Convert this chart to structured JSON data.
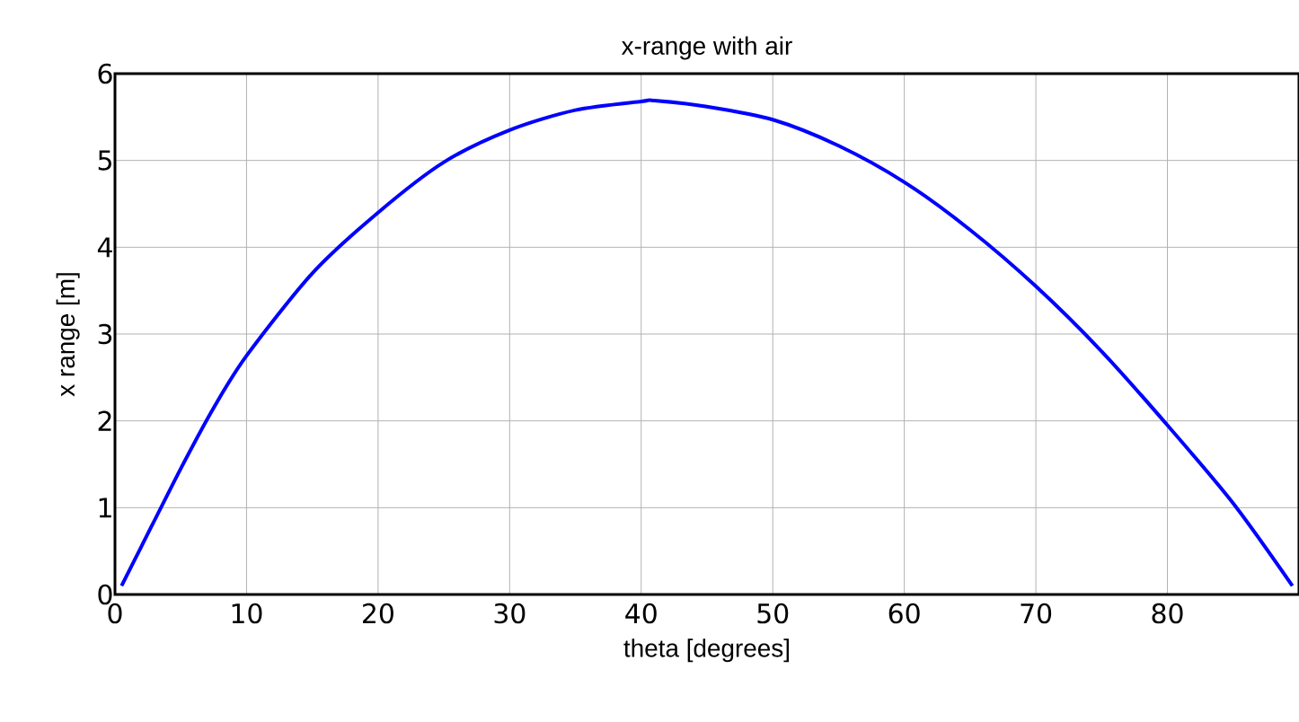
{
  "chart_data": {
    "type": "line",
    "title": "x-range with air",
    "xlabel": "theta [degrees]",
    "ylabel": "x range [m]",
    "x": [
      0.5,
      2,
      5,
      7.5,
      10,
      15,
      20,
      25,
      30,
      35,
      40,
      41,
      45,
      50,
      55,
      60,
      65,
      70,
      75,
      80,
      85,
      89.5
    ],
    "series": [
      {
        "color": "#0000ff",
        "values": [
          0.1,
          0.55,
          1.45,
          2.15,
          2.75,
          3.7,
          4.4,
          4.98,
          5.35,
          5.58,
          5.68,
          5.69,
          5.62,
          5.47,
          5.17,
          4.75,
          4.2,
          3.55,
          2.8,
          1.95,
          1.05,
          0.1
        ]
      }
    ],
    "xlim": [
      0,
      90
    ],
    "ylim": [
      0,
      6
    ],
    "xticks": [
      0,
      10,
      20,
      30,
      40,
      50,
      60,
      70,
      80
    ],
    "yticks": [
      0,
      1,
      2,
      3,
      4,
      5,
      6
    ],
    "grid": true,
    "marker": "none",
    "line_style": "solid"
  }
}
